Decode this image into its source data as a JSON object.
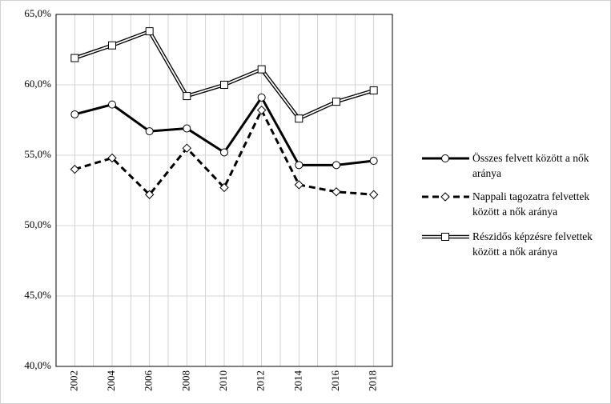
{
  "chart_data": {
    "type": "line",
    "categories": [
      "2002",
      "2004",
      "2006",
      "2008",
      "2010",
      "2012",
      "2014",
      "2016",
      "2018"
    ],
    "series": [
      {
        "name": "Összes felvett között a nők aránya",
        "color": "#000000",
        "line_style": "solid",
        "marker": "circle",
        "values": [
          57.9,
          58.6,
          56.7,
          56.9,
          55.2,
          59.1,
          54.3,
          54.3,
          54.6
        ]
      },
      {
        "name": "Nappali tagozatra felvettek között a nők aránya",
        "color": "#000000",
        "line_style": "dashed",
        "marker": "diamond",
        "values": [
          54.0,
          54.8,
          52.2,
          55.5,
          52.7,
          58.2,
          52.9,
          52.4,
          52.2
        ]
      },
      {
        "name": "Részidős képzésre felvettek között a nők aránya",
        "color": "#000000",
        "line_style": "double",
        "marker": "square",
        "values": [
          61.9,
          62.8,
          63.8,
          59.2,
          60.0,
          61.1,
          57.6,
          58.8,
          59.6
        ]
      }
    ],
    "ylim": [
      40,
      65
    ],
    "yticks": [
      {
        "value": 40,
        "label": "40,0%"
      },
      {
        "value": 45,
        "label": "45,0%"
      },
      {
        "value": 50,
        "label": "50,0%"
      },
      {
        "value": 55,
        "label": "55,0%"
      },
      {
        "value": 60,
        "label": "60,0%"
      },
      {
        "value": 65,
        "label": "65,0%"
      }
    ],
    "grid": true,
    "legend": "right"
  }
}
